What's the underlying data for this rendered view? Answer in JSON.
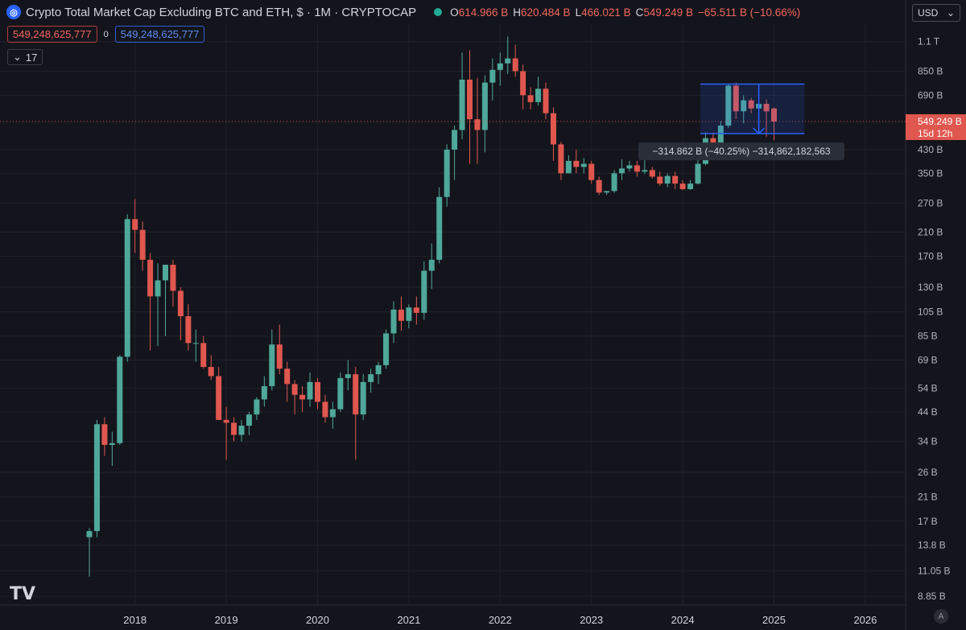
{
  "header": {
    "logo_icon": "crypto-cap-logo-icon",
    "title": "Crypto Total Market Cap Excluding BTC and ETH, $ · 1M · CRYPTOCAP",
    "ohlc": {
      "o_label": "O",
      "o_value": "614.966 B",
      "h_label": "H",
      "h_value": "620.484 B",
      "l_label": "L",
      "l_value": "466.021 B",
      "c_label": "C",
      "c_value": "549.249 B",
      "change": "−65.511 B (−10.66%)"
    },
    "value_box_red": "549,248,625,777",
    "zero_label": "0",
    "value_box_blue": "549,248,625,777",
    "indicator_count": "17",
    "currency": "USD"
  },
  "colors": {
    "up": "#4fa89a",
    "down": "#e0574f",
    "background": "#14151c",
    "grid": "#1f212a",
    "range_box": "#2962ff",
    "price_label": "#e0574f"
  },
  "chart_data": {
    "type": "candlestick",
    "scale": "log",
    "timeframe": "1M",
    "x_tick_labels": [
      "2018",
      "2019",
      "2020",
      "2021",
      "2022",
      "2023",
      "2024",
      "2025",
      "2026"
    ],
    "y_tick_labels": [
      {
        "label": "1.1 T",
        "value": 1.1
      },
      {
        "label": "850 B",
        "value": 0.85
      },
      {
        "label": "690 B",
        "value": 0.69
      },
      {
        "label": "430 B",
        "value": 0.43
      },
      {
        "label": "350 B",
        "value": 0.35
      },
      {
        "label": "270 B",
        "value": 0.27
      },
      {
        "label": "210 B",
        "value": 0.21
      },
      {
        "label": "170 B",
        "value": 0.17
      },
      {
        "label": "130 B",
        "value": 0.13
      },
      {
        "label": "105 B",
        "value": 0.105
      },
      {
        "label": "85 B",
        "value": 0.085
      },
      {
        "label": "69 B",
        "value": 0.069
      },
      {
        "label": "54 B",
        "value": 0.054
      },
      {
        "label": "44 B",
        "value": 0.044
      },
      {
        "label": "34 B",
        "value": 0.034
      },
      {
        "label": "26 B",
        "value": 0.026
      },
      {
        "label": "21 B",
        "value": 0.021
      },
      {
        "label": "17 B",
        "value": 0.017
      },
      {
        "label": "13.8 B",
        "value": 0.0138
      },
      {
        "label": "11.05 B",
        "value": 0.01105
      },
      {
        "label": "8.85 B",
        "value": 0.00885
      }
    ],
    "y_unit": "trillion USD",
    "ylim": [
      0.0082,
      1.28
    ],
    "first_month": "2017-07",
    "candles": [
      [
        0.0148,
        0.016,
        0.0105,
        0.0156
      ],
      [
        0.0156,
        0.041,
        0.0148,
        0.0395
      ],
      [
        0.0395,
        0.042,
        0.03,
        0.033
      ],
      [
        0.033,
        0.037,
        0.0275,
        0.0335
      ],
      [
        0.0335,
        0.072,
        0.033,
        0.071
      ],
      [
        0.071,
        0.245,
        0.068,
        0.235
      ],
      [
        0.235,
        0.28,
        0.175,
        0.214
      ],
      [
        0.214,
        0.23,
        0.15,
        0.165
      ],
      [
        0.165,
        0.175,
        0.075,
        0.12
      ],
      [
        0.12,
        0.16,
        0.078,
        0.138
      ],
      [
        0.138,
        0.15,
        0.085,
        0.158
      ],
      [
        0.158,
        0.165,
        0.11,
        0.126
      ],
      [
        0.126,
        0.13,
        0.082,
        0.101
      ],
      [
        0.101,
        0.112,
        0.075,
        0.08
      ],
      [
        0.08,
        0.09,
        0.068,
        0.08
      ],
      [
        0.08,
        0.085,
        0.064,
        0.065
      ],
      [
        0.065,
        0.072,
        0.058,
        0.06
      ],
      [
        0.06,
        0.065,
        0.041,
        0.041
      ],
      [
        0.041,
        0.046,
        0.029,
        0.04
      ],
      [
        0.04,
        0.042,
        0.034,
        0.036
      ],
      [
        0.036,
        0.041,
        0.034,
        0.039
      ],
      [
        0.039,
        0.044,
        0.036,
        0.043
      ],
      [
        0.043,
        0.05,
        0.041,
        0.049
      ],
      [
        0.049,
        0.06,
        0.046,
        0.055
      ],
      [
        0.055,
        0.09,
        0.053,
        0.079
      ],
      [
        0.079,
        0.094,
        0.061,
        0.064
      ],
      [
        0.064,
        0.068,
        0.048,
        0.056
      ],
      [
        0.056,
        0.058,
        0.043,
        0.051
      ],
      [
        0.051,
        0.055,
        0.044,
        0.049
      ],
      [
        0.049,
        0.062,
        0.046,
        0.057
      ],
      [
        0.057,
        0.059,
        0.045,
        0.048
      ],
      [
        0.048,
        0.051,
        0.04,
        0.042
      ],
      [
        0.042,
        0.048,
        0.038,
        0.045
      ],
      [
        0.045,
        0.062,
        0.044,
        0.059
      ],
      [
        0.059,
        0.069,
        0.053,
        0.061
      ],
      [
        0.061,
        0.065,
        0.029,
        0.043
      ],
      [
        0.043,
        0.061,
        0.041,
        0.057
      ],
      [
        0.057,
        0.064,
        0.052,
        0.061
      ],
      [
        0.061,
        0.068,
        0.056,
        0.066
      ],
      [
        0.066,
        0.09,
        0.064,
        0.087
      ],
      [
        0.087,
        0.115,
        0.08,
        0.107
      ],
      [
        0.107,
        0.12,
        0.089,
        0.097
      ],
      [
        0.097,
        0.112,
        0.091,
        0.109
      ],
      [
        0.109,
        0.12,
        0.094,
        0.104
      ],
      [
        0.104,
        0.163,
        0.098,
        0.15
      ],
      [
        0.15,
        0.19,
        0.128,
        0.165
      ],
      [
        0.165,
        0.31,
        0.16,
        0.285
      ],
      [
        0.285,
        0.45,
        0.262,
        0.43
      ],
      [
        0.43,
        0.53,
        0.33,
        0.51
      ],
      [
        0.51,
        1.0,
        0.47,
        0.79
      ],
      [
        0.79,
        1.02,
        0.38,
        0.56
      ],
      [
        0.56,
        0.8,
        0.38,
        0.51
      ],
      [
        0.51,
        0.82,
        0.42,
        0.77
      ],
      [
        0.77,
        0.95,
        0.66,
        0.86
      ],
      [
        0.86,
        1.0,
        0.75,
        0.91
      ],
      [
        0.91,
        1.15,
        0.83,
        0.95
      ],
      [
        0.95,
        1.07,
        0.81,
        0.85
      ],
      [
        0.85,
        0.9,
        0.61,
        0.69
      ],
      [
        0.69,
        0.74,
        0.61,
        0.65
      ],
      [
        0.65,
        0.81,
        0.63,
        0.73
      ],
      [
        0.73,
        0.77,
        0.56,
        0.59
      ],
      [
        0.59,
        0.62,
        0.39,
        0.45
      ],
      [
        0.45,
        0.46,
        0.33,
        0.35
      ],
      [
        0.35,
        0.41,
        0.35,
        0.39
      ],
      [
        0.39,
        0.43,
        0.35,
        0.37
      ],
      [
        0.37,
        0.4,
        0.35,
        0.38
      ],
      [
        0.38,
        0.39,
        0.32,
        0.33
      ],
      [
        0.33,
        0.34,
        0.29,
        0.296
      ],
      [
        0.296,
        0.3,
        0.29,
        0.3
      ],
      [
        0.3,
        0.36,
        0.295,
        0.35
      ],
      [
        0.35,
        0.395,
        0.33,
        0.365
      ],
      [
        0.365,
        0.39,
        0.355,
        0.375
      ],
      [
        0.375,
        0.39,
        0.34,
        0.355
      ],
      [
        0.355,
        0.405,
        0.348,
        0.36
      ],
      [
        0.36,
        0.37,
        0.335,
        0.34
      ],
      [
        0.34,
        0.355,
        0.314,
        0.32
      ],
      [
        0.32,
        0.35,
        0.31,
        0.342
      ],
      [
        0.342,
        0.355,
        0.305,
        0.32
      ],
      [
        0.32,
        0.33,
        0.302,
        0.305
      ],
      [
        0.305,
        0.33,
        0.303,
        0.32
      ],
      [
        0.32,
        0.4,
        0.318,
        0.38
      ],
      [
        0.38,
        0.5,
        0.375,
        0.475
      ],
      [
        0.475,
        0.5,
        0.43,
        0.45
      ],
      [
        0.45,
        0.55,
        0.44,
        0.53
      ],
      [
        0.53,
        0.76,
        0.52,
        0.75
      ],
      [
        0.75,
        0.77,
        0.56,
        0.6
      ],
      [
        0.6,
        0.69,
        0.54,
        0.66
      ],
      [
        0.66,
        0.675,
        0.59,
        0.615
      ],
      [
        0.615,
        0.67,
        0.59,
        0.64
      ],
      [
        0.64,
        0.665,
        0.48,
        0.6
      ],
      [
        0.615,
        0.62,
        0.466,
        0.549
      ]
    ],
    "last_price_label": "549.249 B",
    "last_price_countdown": "15d 12h",
    "measure_label": "−314.862 B (−40.25%) −314,862,182,563"
  }
}
